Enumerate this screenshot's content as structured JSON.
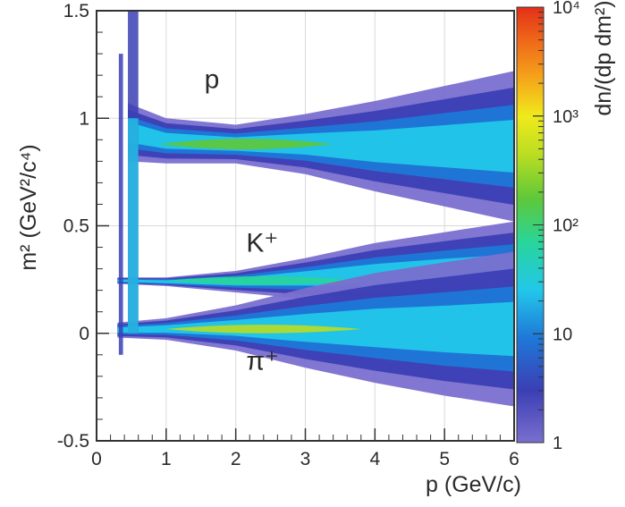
{
  "chart_data": {
    "type": "heatmap",
    "title": "",
    "xlabel": "p (GeV/c)",
    "ylabel": "m² (GeV²/c⁴)",
    "xlim": [
      0,
      6
    ],
    "ylim": [
      -0.5,
      1.5
    ],
    "x_ticks": [
      "0",
      "1",
      "2",
      "3",
      "4",
      "5",
      "6"
    ],
    "y_ticks": [
      "-0.5",
      "0",
      "0.5",
      "1",
      "1.5"
    ],
    "grid": true,
    "colorbar": {
      "label": "dn/(dp dm²)",
      "scale": "log",
      "range": [
        1,
        10000
      ],
      "tick_labels": [
        "1",
        "10",
        "10²",
        "10³",
        "10⁴"
      ],
      "colors": [
        "#7a6fcf",
        "#3b3fb4",
        "#1e78d8",
        "#22c7ea",
        "#28d59a",
        "#5ec839",
        "#b9dd22",
        "#f0ea1b",
        "#f5a21a",
        "#f06a19",
        "#e23019"
      ]
    },
    "annotations": [
      {
        "text": "p",
        "x": 1.55,
        "y": 1.14
      },
      {
        "text": "K⁺",
        "x": 2.15,
        "y": 0.38
      },
      {
        "text": "π⁺",
        "x": 2.15,
        "y": -0.17
      }
    ],
    "series": [
      {
        "name": "p",
        "m2_center": 0.88,
        "p_range": [
          0.45,
          6.0
        ],
        "envelope_p": [
          0.45,
          1,
          2,
          3,
          4,
          5,
          6
        ],
        "envelope_upper": [
          1.07,
          1.0,
          0.97,
          1.02,
          1.08,
          1.15,
          1.22
        ],
        "envelope_lower": [
          0.8,
          0.79,
          0.79,
          0.74,
          0.66,
          0.59,
          0.52
        ],
        "peak_density_log10": 2.6
      },
      {
        "name": "K⁺",
        "m2_center": 0.245,
        "p_range": [
          0.3,
          6.0
        ],
        "envelope_p": [
          0.3,
          1,
          2,
          3,
          4,
          5,
          6
        ],
        "envelope_upper": [
          0.26,
          0.26,
          0.29,
          0.35,
          0.42,
          0.47,
          0.52
        ],
        "envelope_lower": [
          0.23,
          0.22,
          0.19,
          0.16,
          0.12,
          0.09,
          0.05
        ],
        "peak_density_log10": 2.0
      },
      {
        "name": "π⁺",
        "m2_center": 0.02,
        "p_range": [
          0.3,
          6.0
        ],
        "envelope_p": [
          0.3,
          1,
          2,
          3,
          4,
          5,
          6
        ],
        "envelope_upper": [
          0.05,
          0.07,
          0.13,
          0.21,
          0.28,
          0.33,
          0.38
        ],
        "envelope_lower": [
          -0.02,
          -0.03,
          -0.08,
          -0.16,
          -0.23,
          -0.29,
          -0.34
        ],
        "peak_density_log10": 3.0
      }
    ]
  }
}
